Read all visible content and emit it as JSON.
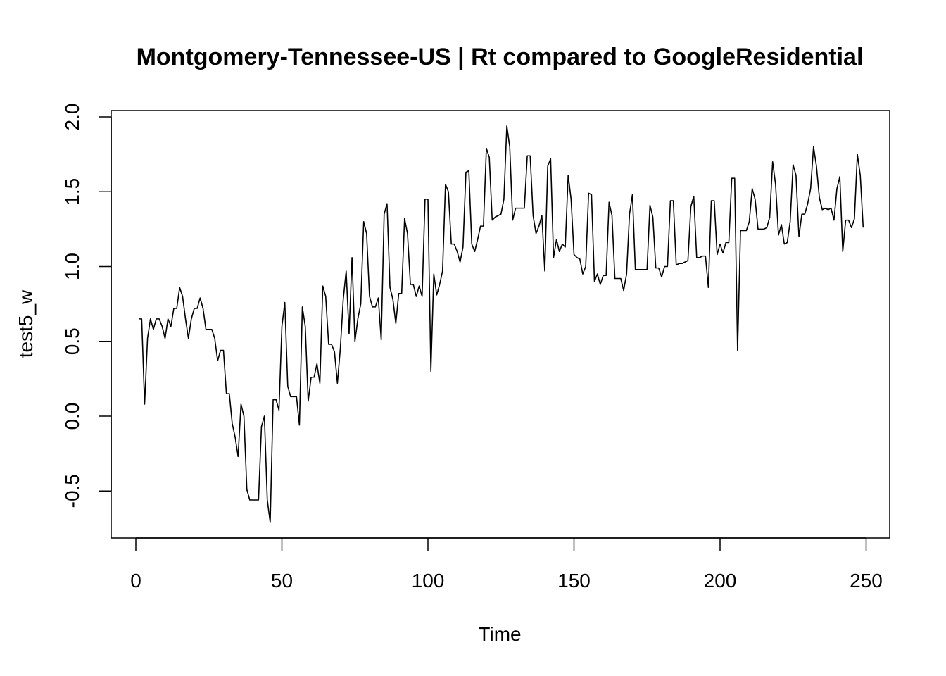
{
  "chart_data": {
    "type": "line",
    "title": "Montgomery-Tennessee-US | Rt compared to GoogleResidential",
    "xlabel": "Time",
    "ylabel": "test5_w",
    "xlim": [
      1,
      248
    ],
    "ylim": [
      -0.72,
      1.94
    ],
    "x_ticks": [
      0,
      50,
      100,
      150,
      200,
      250
    ],
    "x_tick_labels": [
      "0",
      "50",
      "100",
      "150",
      "200",
      "250"
    ],
    "y_ticks": [
      -0.5,
      0.0,
      0.5,
      1.0,
      1.5,
      2.0
    ],
    "y_tick_labels": [
      "-0.5",
      "0.0",
      "0.5",
      "1.0",
      "1.5",
      "2.0"
    ],
    "grid": false,
    "legend": "none",
    "line_color": "#000000",
    "series": [
      {
        "x_start": 1,
        "values": [
          0.65,
          0.65,
          0.08,
          0.52,
          0.65,
          0.58,
          0.65,
          0.65,
          0.6,
          0.52,
          0.65,
          0.6,
          0.72,
          0.72,
          0.86,
          0.8,
          0.65,
          0.52,
          0.65,
          0.72,
          0.72,
          0.79,
          0.72,
          0.58,
          0.58,
          0.58,
          0.52,
          0.37,
          0.44,
          0.44,
          0.15,
          0.15,
          -0.05,
          -0.14,
          -0.27,
          0.08,
          0.0,
          -0.49,
          -0.56,
          -0.56,
          -0.56,
          -0.56,
          -0.07,
          0.0,
          -0.56,
          -0.71,
          0.11,
          0.11,
          0.04,
          0.6,
          0.76,
          0.2,
          0.13,
          0.13,
          0.13,
          -0.06,
          0.73,
          0.6,
          0.1,
          0.26,
          0.26,
          0.35,
          0.22,
          0.87,
          0.8,
          0.48,
          0.48,
          0.43,
          0.22,
          0.45,
          0.78,
          0.97,
          0.55,
          1.06,
          0.5,
          0.65,
          0.75,
          1.3,
          1.22,
          0.8,
          0.73,
          0.73,
          0.79,
          0.51,
          1.35,
          1.42,
          0.86,
          0.78,
          0.62,
          0.82,
          0.82,
          1.32,
          1.22,
          0.88,
          0.88,
          0.8,
          0.87,
          0.8,
          1.45,
          1.45,
          0.3,
          0.95,
          0.81,
          0.88,
          0.97,
          1.55,
          1.5,
          1.15,
          1.15,
          1.1,
          1.03,
          1.13,
          1.63,
          1.64,
          1.15,
          1.1,
          1.18,
          1.27,
          1.27,
          1.79,
          1.73,
          1.31,
          1.33,
          1.34,
          1.35,
          1.45,
          1.94,
          1.8,
          1.31,
          1.39,
          1.39,
          1.39,
          1.39,
          1.74,
          1.74,
          1.34,
          1.22,
          1.27,
          1.34,
          0.97,
          1.67,
          1.72,
          1.06,
          1.18,
          1.1,
          1.15,
          1.13,
          1.61,
          1.45,
          1.08,
          1.06,
          1.05,
          0.95,
          1.0,
          1.49,
          1.48,
          0.9,
          0.95,
          0.88,
          0.94,
          0.94,
          1.43,
          1.34,
          0.92,
          0.92,
          0.92,
          0.84,
          0.95,
          1.35,
          1.48,
          0.98,
          0.98,
          0.98,
          0.98,
          0.98,
          1.41,
          1.33,
          0.99,
          0.99,
          0.93,
          1.0,
          1.0,
          1.44,
          1.44,
          1.01,
          1.02,
          1.02,
          1.03,
          1.04,
          1.4,
          1.47,
          1.06,
          1.06,
          1.07,
          1.07,
          0.86,
          1.44,
          1.44,
          1.08,
          1.15,
          1.09,
          1.16,
          1.16,
          1.59,
          1.59,
          0.44,
          1.24,
          1.24,
          1.24,
          1.3,
          1.52,
          1.45,
          1.25,
          1.25,
          1.25,
          1.26,
          1.33,
          1.7,
          1.55,
          1.21,
          1.28,
          1.15,
          1.16,
          1.3,
          1.68,
          1.61,
          1.2,
          1.35,
          1.35,
          1.42,
          1.52,
          1.8,
          1.67,
          1.46,
          1.38,
          1.39,
          1.38,
          1.39,
          1.31,
          1.52,
          1.6,
          1.1,
          1.31,
          1.31,
          1.26,
          1.32,
          1.75,
          1.61,
          1.26
        ]
      }
    ]
  }
}
